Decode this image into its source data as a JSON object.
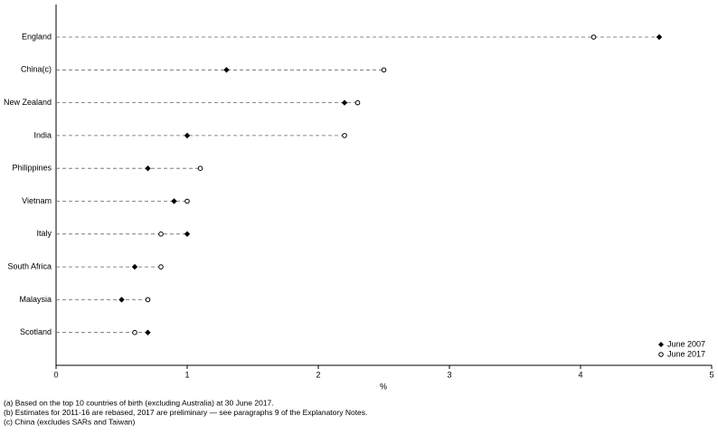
{
  "chart_data": {
    "type": "dot",
    "categories": [
      "England",
      "China(c)",
      "New Zealand",
      "India",
      "Philippines",
      "Vietnam",
      "Italy",
      "South Africa",
      "Malaysia",
      "Scotland"
    ],
    "series": [
      {
        "name": "June 2007",
        "color": "#000000",
        "values": [
          4.6,
          1.3,
          2.2,
          1.0,
          0.7,
          0.9,
          1.0,
          0.6,
          0.5,
          0.7
        ]
      },
      {
        "name": "June 2017",
        "color": "#000000",
        "values": [
          4.1,
          2.5,
          2.3,
          2.2,
          1.1,
          1.0,
          0.8,
          0.8,
          0.7,
          0.6
        ]
      }
    ],
    "xlabel": "%",
    "xlim": [
      0,
      5
    ],
    "xticks": [
      0,
      1,
      2,
      3,
      4,
      5
    ],
    "legend": "bottom-right",
    "notes": [
      "(a) Based on the top 10 countries of birth (excluding Australia) at 30 June 2017.",
      "(b) Estimates for 2011-16 are rebased, 2017 are preliminary — see paragraphs 9 of the Explanatory Notes.",
      "(c) China (excludes SARs and Taiwan)"
    ]
  }
}
